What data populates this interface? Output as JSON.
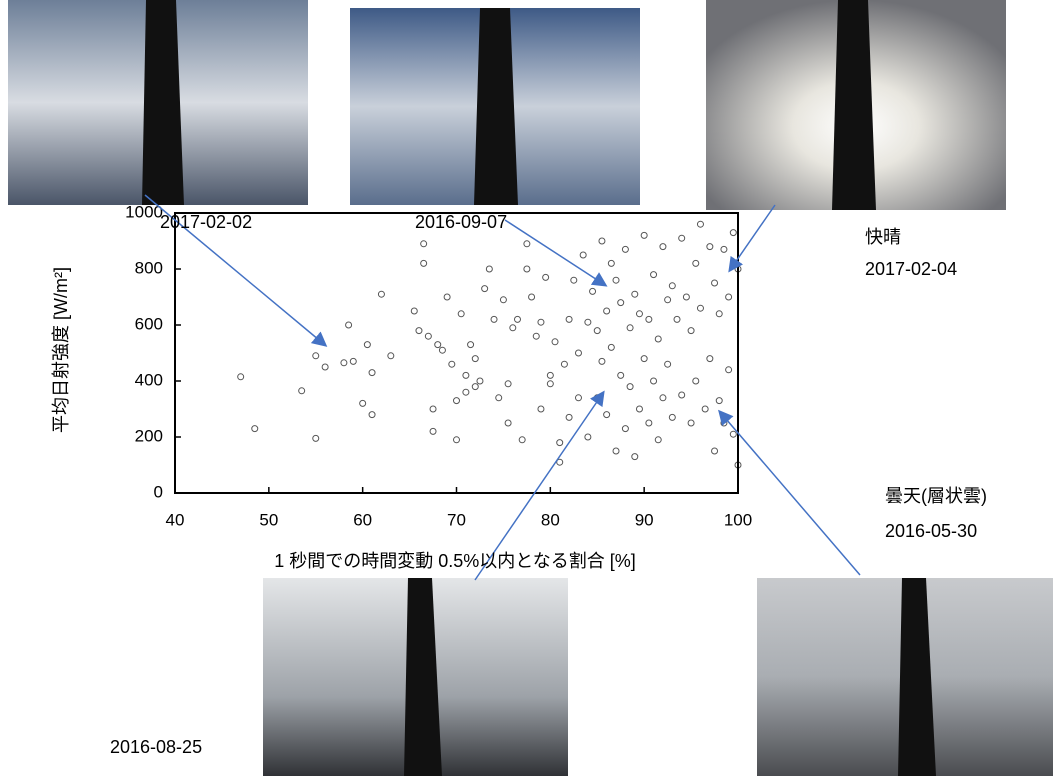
{
  "chart_data": {
    "type": "scatter",
    "x_label": "1 秒間での時間変動 0.5%以内となる割合 [%]",
    "y_label": "平均日射強度 [W/m²]",
    "xlim": [
      40,
      100
    ],
    "xticks": [
      40,
      50,
      60,
      70,
      80,
      90,
      100
    ],
    "ylim": [
      0,
      1000
    ],
    "yticks": [
      0,
      200,
      400,
      600,
      800,
      1000
    ],
    "color": "#555555",
    "annotations": [
      "2017-02-02",
      "2016-09-07",
      "快晴",
      "2017-02-04",
      "曇天(層状雲)",
      "2016-05-30",
      "2016-08-25"
    ],
    "points": [
      [
        47,
        415
      ],
      [
        48.5,
        230
      ],
      [
        53.5,
        365
      ],
      [
        55,
        490
      ],
      [
        55,
        195
      ],
      [
        56,
        450
      ],
      [
        58,
        465
      ],
      [
        58.5,
        600
      ],
      [
        59,
        470
      ],
      [
        60,
        320
      ],
      [
        60.5,
        530
      ],
      [
        61,
        430
      ],
      [
        61,
        280
      ],
      [
        62,
        710
      ],
      [
        63,
        490
      ],
      [
        65.5,
        650
      ],
      [
        66,
        580
      ],
      [
        66.5,
        890
      ],
      [
        66.5,
        820
      ],
      [
        67,
        560
      ],
      [
        67.5,
        300
      ],
      [
        67.5,
        220
      ],
      [
        68,
        530
      ],
      [
        68.5,
        510
      ],
      [
        69,
        700
      ],
      [
        69.5,
        460
      ],
      [
        70,
        330
      ],
      [
        70,
        190
      ],
      [
        70.5,
        640
      ],
      [
        71,
        420
      ],
      [
        71,
        360
      ],
      [
        71.5,
        530
      ],
      [
        72,
        480
      ],
      [
        72,
        380
      ],
      [
        72.5,
        400
      ],
      [
        73,
        730
      ],
      [
        73.5,
        800
      ],
      [
        74,
        620
      ],
      [
        74.5,
        340
      ],
      [
        75,
        690
      ],
      [
        75.5,
        390
      ],
      [
        75.5,
        250
      ],
      [
        76,
        590
      ],
      [
        76.5,
        620
      ],
      [
        77,
        190
      ],
      [
        77.5,
        890
      ],
      [
        77.5,
        800
      ],
      [
        78,
        700
      ],
      [
        78.5,
        560
      ],
      [
        79,
        610
      ],
      [
        79,
        300
      ],
      [
        79.5,
        770
      ],
      [
        80,
        420
      ],
      [
        80,
        390
      ],
      [
        80.5,
        540
      ],
      [
        81,
        180
      ],
      [
        81,
        110
      ],
      [
        81.5,
        460
      ],
      [
        82,
        620
      ],
      [
        82,
        270
      ],
      [
        82.5,
        760
      ],
      [
        83,
        500
      ],
      [
        83,
        340
      ],
      [
        83.5,
        850
      ],
      [
        84,
        610
      ],
      [
        84,
        200
      ],
      [
        84.5,
        720
      ],
      [
        85,
        580
      ],
      [
        85,
        340
      ],
      [
        85.5,
        900
      ],
      [
        85.5,
        470
      ],
      [
        86,
        650
      ],
      [
        86,
        280
      ],
      [
        86.5,
        820
      ],
      [
        86.5,
        520
      ],
      [
        87,
        760
      ],
      [
        87,
        150
      ],
      [
        87.5,
        680
      ],
      [
        87.5,
        420
      ],
      [
        88,
        870
      ],
      [
        88,
        230
      ],
      [
        88.5,
        590
      ],
      [
        88.5,
        380
      ],
      [
        89,
        710
      ],
      [
        89,
        130
      ],
      [
        89.5,
        640
      ],
      [
        89.5,
        300
      ],
      [
        90,
        920
      ],
      [
        90,
        480
      ],
      [
        90.5,
        620
      ],
      [
        90.5,
        250
      ],
      [
        91,
        780
      ],
      [
        91,
        400
      ],
      [
        91.5,
        550
      ],
      [
        91.5,
        190
      ],
      [
        92,
        880
      ],
      [
        92,
        340
      ],
      [
        92.5,
        690
      ],
      [
        92.5,
        460
      ],
      [
        93,
        740
      ],
      [
        93,
        270
      ],
      [
        93.5,
        620
      ],
      [
        94,
        910
      ],
      [
        94,
        350
      ],
      [
        94.5,
        700
      ],
      [
        95,
        580
      ],
      [
        95,
        250
      ],
      [
        95.5,
        820
      ],
      [
        95.5,
        400
      ],
      [
        96,
        960
      ],
      [
        96,
        660
      ],
      [
        96.5,
        300
      ],
      [
        97,
        880
      ],
      [
        97,
        480
      ],
      [
        97.5,
        750
      ],
      [
        97.5,
        150
      ],
      [
        98,
        640
      ],
      [
        98,
        330
      ],
      [
        98.5,
        870
      ],
      [
        98.5,
        250
      ],
      [
        99,
        700
      ],
      [
        99,
        440
      ],
      [
        99.5,
        930
      ],
      [
        99.5,
        210
      ],
      [
        100,
        800
      ],
      [
        100,
        100
      ]
    ]
  }
}
